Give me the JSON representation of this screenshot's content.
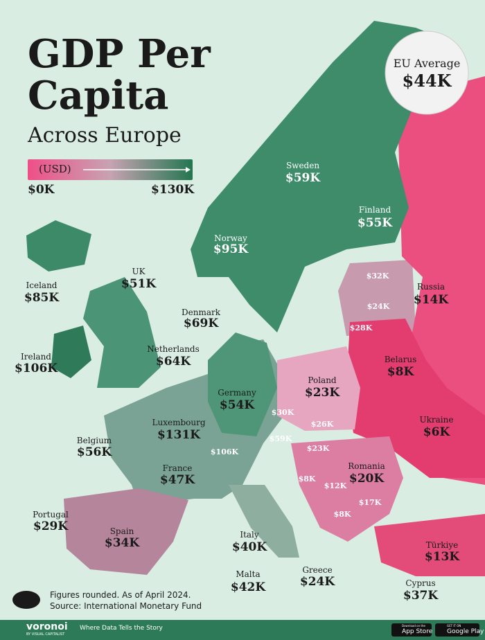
{
  "header": {
    "title_line1": "GDP Per",
    "title_line2": "Capita",
    "subtitle": "Across Europe"
  },
  "legend": {
    "unit": "(USD)",
    "min": "$0K",
    "max": "$130K"
  },
  "eu_average": {
    "label": "EU Average",
    "value": "$44K"
  },
  "countries": [
    {
      "name": "Sweden",
      "value": "$59K"
    },
    {
      "name": "Finland",
      "value": "$55K"
    },
    {
      "name": "Norway",
      "value": "$95K"
    },
    {
      "name": "UK",
      "value": "$51K"
    },
    {
      "name": "Iceland",
      "value": "$85K"
    },
    {
      "name": "Denmark",
      "value": "$69K"
    },
    {
      "name": "Netherlands",
      "value": "$64K"
    },
    {
      "name": "Ireland",
      "value": "$106K"
    },
    {
      "name": "Germany",
      "value": "$54K"
    },
    {
      "name": "Luxembourg",
      "value": "$131K"
    },
    {
      "name": "Belgium",
      "value": "$56K"
    },
    {
      "name": "France",
      "value": "$47K"
    },
    {
      "name": "Poland",
      "value": "$23K"
    },
    {
      "name": "Belarus",
      "value": "$8K"
    },
    {
      "name": "Russia",
      "value": "$14K"
    },
    {
      "name": "Ukraine",
      "value": "$6K"
    },
    {
      "name": "Romania",
      "value": "$20K"
    },
    {
      "name": "Portugal",
      "value": "$29K"
    },
    {
      "name": "Spain",
      "value": "$34K"
    },
    {
      "name": "Italy",
      "value": "$40K"
    },
    {
      "name": "Türkiye",
      "value": "$13K"
    },
    {
      "name": "Greece",
      "value": "$24K"
    },
    {
      "name": "Malta",
      "value": "$42K"
    },
    {
      "name": "Cyprus",
      "value": "$37K"
    }
  ],
  "unnamed_values": [
    "$32K",
    "$24K",
    "$28K",
    "$30K",
    "$26K",
    "$23K",
    "$59K",
    "$106K",
    "$8K",
    "$12K",
    "$17K",
    "$8K"
  ],
  "footer": {
    "note": "Figures rounded. As of April 2024.",
    "source": "Source: International Monetary Fund",
    "brand": "voronoi",
    "brand_sub": "BY VISUAL CAPITALIST",
    "tagline": "Where Data Tells the Story",
    "app_store_small": "Download on the",
    "app_store": "App Store",
    "google_small": "GET IT ON",
    "google": "Google Play"
  }
}
